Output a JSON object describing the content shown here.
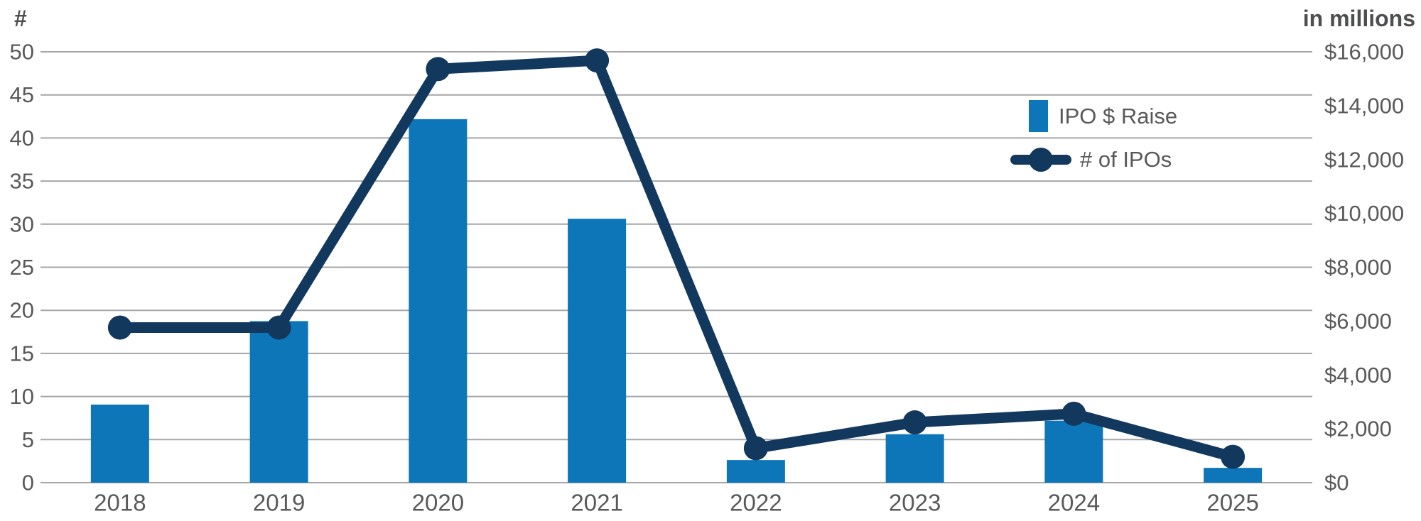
{
  "chart_data": {
    "type": "combo",
    "title": "",
    "categories": [
      "2018",
      "2019",
      "2020",
      "2021",
      "2022",
      "2023",
      "2024",
      "2025"
    ],
    "series": [
      {
        "name": "IPO $ Raise",
        "type": "bar",
        "axis": "right",
        "units": "millions USD",
        "values": [
          2900,
          6000,
          13500,
          9800,
          840,
          1800,
          2300,
          550
        ]
      },
      {
        "name": "# of IPOs",
        "type": "line",
        "axis": "left",
        "units": "count",
        "values": [
          18,
          18,
          48,
          49,
          4,
          7,
          8,
          3
        ]
      }
    ],
    "left_axis": {
      "title": "#",
      "min": 0,
      "max": 50,
      "step": 5,
      "tick_labels": [
        "0",
        "5",
        "10",
        "15",
        "20",
        "25",
        "30",
        "35",
        "40",
        "45",
        "50"
      ]
    },
    "right_axis": {
      "title": "in millions",
      "min": 0,
      "max": 16000,
      "step": 2000,
      "tick_labels": [
        "$0",
        "$2,000",
        "$4,000",
        "$6,000",
        "$8,000",
        "$10,000",
        "$12,000",
        "$14,000",
        "$16,000"
      ]
    },
    "grid": true,
    "legend_position": "top-right",
    "colors": {
      "bar": "#0d76b9",
      "line": "#12395d",
      "grid": "#a6a6a6",
      "text": "#58595b",
      "header_text": "#4d4e50"
    }
  }
}
